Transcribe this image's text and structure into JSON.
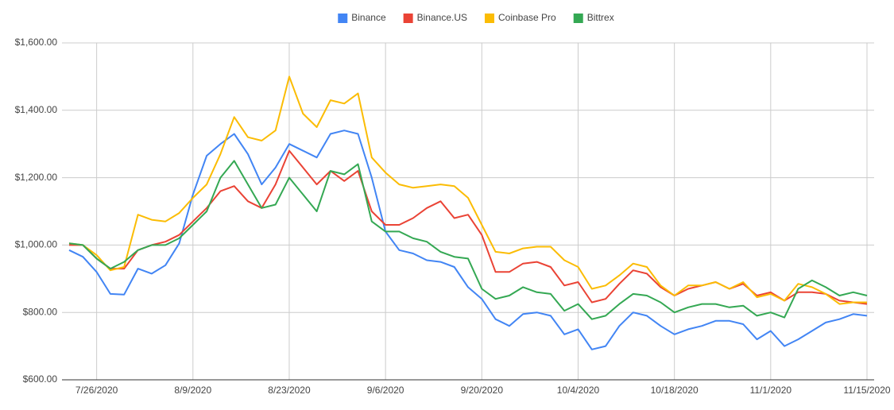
{
  "chart_data": {
    "type": "line",
    "categories": [
      null,
      null,
      "7/26/2020",
      null,
      null,
      null,
      null,
      null,
      null,
      "8/9/2020",
      null,
      null,
      null,
      null,
      null,
      null,
      "8/23/2020",
      null,
      null,
      null,
      null,
      null,
      null,
      "9/6/2020",
      null,
      null,
      null,
      null,
      null,
      null,
      "9/20/2020",
      null,
      null,
      null,
      null,
      null,
      null,
      "10/4/2020",
      null,
      null,
      null,
      null,
      null,
      null,
      "10/18/2020",
      null,
      null,
      null,
      null,
      null,
      null,
      "11/1/2020",
      null,
      null,
      null,
      null,
      null,
      null,
      "11/15/2020"
    ],
    "series": [
      {
        "name": "Binance",
        "color": "#4285f4",
        "values": [
          985,
          965,
          920,
          855,
          853,
          930,
          915,
          940,
          1005,
          1150,
          1265,
          1300,
          1330,
          1270,
          1180,
          1230,
          1300,
          1280,
          1260,
          1330,
          1340,
          1330,
          1200,
          1040,
          985,
          975,
          955,
          950,
          935,
          875,
          840,
          780,
          760,
          795,
          800,
          790,
          735,
          750,
          690,
          700,
          760,
          800,
          790,
          760,
          735,
          750,
          760,
          775,
          775,
          765,
          720,
          745,
          700,
          720,
          745,
          770,
          780,
          795,
          790
        ]
      },
      {
        "name": "Binance.US",
        "color": "#ea4335",
        "values": [
          1000,
          1000,
          960,
          930,
          930,
          985,
          1000,
          1010,
          1030,
          1070,
          1110,
          1160,
          1175,
          1130,
          1110,
          1180,
          1280,
          1230,
          1180,
          1220,
          1190,
          1220,
          1100,
          1060,
          1060,
          1080,
          1110,
          1130,
          1080,
          1090,
          1030,
          920,
          920,
          945,
          950,
          935,
          880,
          890,
          830,
          840,
          885,
          925,
          915,
          875,
          850,
          870,
          880,
          890,
          870,
          885,
          850,
          860,
          835,
          860,
          860,
          855,
          835,
          830,
          825
        ]
      },
      {
        "name": "Coinbase Pro",
        "color": "#fbbc04",
        "values": [
          1005,
          1000,
          970,
          925,
          935,
          1090,
          1075,
          1070,
          1095,
          1140,
          1180,
          1270,
          1380,
          1320,
          1310,
          1340,
          1500,
          1390,
          1350,
          1430,
          1420,
          1450,
          1260,
          1215,
          1180,
          1170,
          1175,
          1180,
          1175,
          1140,
          1060,
          980,
          975,
          990,
          995,
          995,
          955,
          935,
          870,
          880,
          910,
          945,
          935,
          880,
          850,
          880,
          880,
          890,
          870,
          890,
          845,
          855,
          835,
          885,
          875,
          855,
          825,
          830,
          830
        ]
      },
      {
        "name": "Bittrex",
        "color": "#34a853",
        "values": [
          1005,
          1000,
          960,
          930,
          950,
          985,
          1000,
          1000,
          1020,
          1060,
          1100,
          1200,
          1250,
          1180,
          1110,
          1120,
          1200,
          1150,
          1100,
          1220,
          1210,
          1240,
          1070,
          1040,
          1040,
          1020,
          1010,
          980,
          965,
          960,
          870,
          840,
          850,
          875,
          860,
          855,
          805,
          825,
          780,
          790,
          825,
          855,
          850,
          830,
          800,
          815,
          825,
          825,
          815,
          820,
          790,
          800,
          785,
          870,
          895,
          875,
          850,
          860,
          850
        ]
      }
    ],
    "ylim": [
      600,
      1600
    ],
    "yticks": [
      {
        "value": 600,
        "label": "$600.00"
      },
      {
        "value": 800,
        "label": "$800.00"
      },
      {
        "value": 1000,
        "label": "$1,000.00"
      },
      {
        "value": 1200,
        "label": "$1,200.00"
      },
      {
        "value": 1400,
        "label": "$1,400.00"
      },
      {
        "value": 1600,
        "label": "$1,600.00"
      }
    ],
    "grid": true,
    "legend": "top"
  }
}
